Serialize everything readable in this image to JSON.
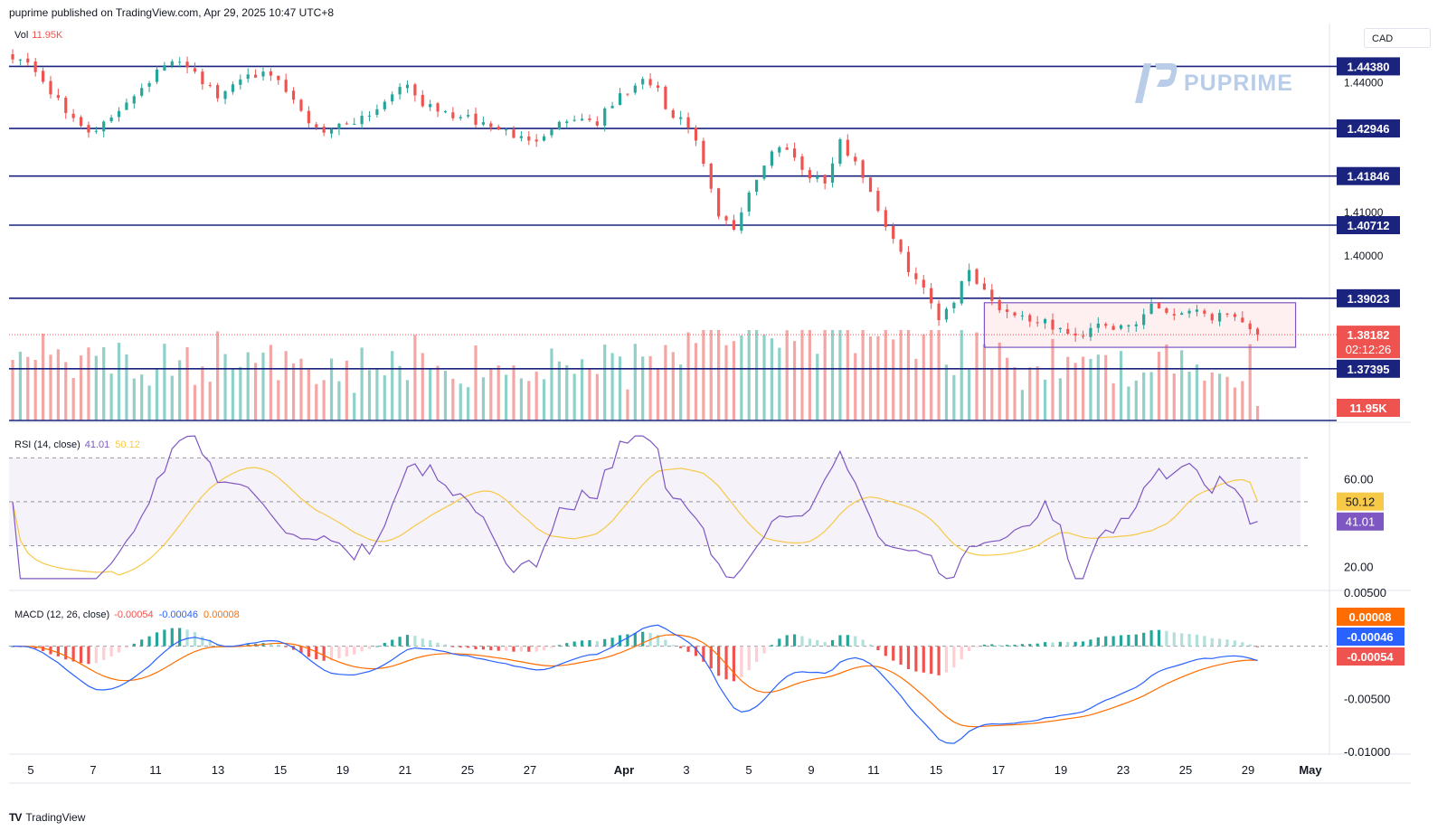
{
  "header": {
    "published_text": "puprime published on TradingView.com, Apr 29, 2025 10:47 UTC+8"
  },
  "currency_label": "CAD",
  "brand": {
    "name": "PUPRIME",
    "color": "#b9cde8"
  },
  "footer": {
    "logo": "TV",
    "text": "TradingView"
  },
  "colors": {
    "up": "#26a69a",
    "down": "#ef5350",
    "up_vol": "#8fd1c8",
    "down_vol": "#f4a6a4",
    "level_line": "#1a237e",
    "rsi": "#7e57c2",
    "rsi_ma": "#f7c948",
    "macd": "#2962ff",
    "signal": "#ff6d00"
  },
  "chart_data": [
    {
      "type": "candlestick",
      "symbol_quote": "CAD",
      "x_labels": [
        "5",
        "7",
        "11",
        "13",
        "15",
        "19",
        "21",
        "25",
        "27",
        "Apr",
        "3",
        "5",
        "9",
        "11",
        "15",
        "17",
        "19",
        "23",
        "25",
        "29",
        "May"
      ],
      "price_axis_ticks": [
        "1.44000",
        "1.40000",
        "1.41000"
      ],
      "ylim": [
        1.362,
        1.4537
      ],
      "horizontal_levels": [
        {
          "label": "1.44380",
          "value": 1.4438
        },
        {
          "label": "1.42946",
          "value": 1.42946
        },
        {
          "label": "1.41846",
          "value": 1.41846
        },
        {
          "label": "1.40712",
          "value": 1.40712
        },
        {
          "label": "1.39023",
          "value": 1.39023
        },
        {
          "label": "1.37395",
          "value": 1.37395
        }
      ],
      "current_price": {
        "label": "1.38182",
        "countdown": "02:12:26",
        "value": 1.38182
      },
      "range_box": {
        "from_bar": 128,
        "to_bar": 169,
        "top": 1.3892,
        "bottom": 1.3789
      },
      "anchors": [
        [
          0,
          1.4465
        ],
        [
          3,
          1.443
        ],
        [
          7,
          1.433
        ],
        [
          11,
          1.4282
        ],
        [
          15,
          1.436
        ],
        [
          20,
          1.444
        ],
        [
          23,
          1.4445
        ],
        [
          27,
          1.4365
        ],
        [
          31,
          1.443
        ],
        [
          35,
          1.44
        ],
        [
          39,
          1.431
        ],
        [
          41,
          1.429
        ],
        [
          45,
          1.4315
        ],
        [
          48,
          1.434
        ],
        [
          51,
          1.44
        ],
        [
          55,
          1.434
        ],
        [
          59,
          1.432
        ],
        [
          63,
          1.43
        ],
        [
          66,
          1.428
        ],
        [
          68,
          1.426
        ],
        [
          71,
          1.43
        ],
        [
          74,
          1.432
        ],
        [
          77,
          1.431
        ],
        [
          80,
          1.437
        ],
        [
          83,
          1.44
        ],
        [
          85,
          1.439
        ],
        [
          86,
          1.433
        ],
        [
          89,
          1.43
        ],
        [
          90,
          1.426
        ],
        [
          92,
          1.415
        ],
        [
          93,
          1.409
        ],
        [
          95,
          1.406
        ],
        [
          97,
          1.415
        ],
        [
          100,
          1.424
        ],
        [
          102,
          1.4255
        ],
        [
          104,
          1.42
        ],
        [
          107,
          1.417
        ],
        [
          109,
          1.426
        ],
        [
          111,
          1.422
        ],
        [
          113,
          1.415
        ],
        [
          115,
          1.407
        ],
        [
          117,
          1.4
        ],
        [
          120,
          1.392
        ],
        [
          122,
          1.386
        ],
        [
          124,
          1.39
        ],
        [
          126,
          1.397
        ],
        [
          128,
          1.392
        ],
        [
          130,
          1.388
        ],
        [
          133,
          1.386
        ],
        [
          135,
          1.385
        ],
        [
          138,
          1.383
        ],
        [
          140,
          1.381
        ],
        [
          143,
          1.385
        ],
        [
          146,
          1.383
        ],
        [
          148,
          1.384
        ],
        [
          150,
          1.389
        ],
        [
          153,
          1.3865
        ],
        [
          156,
          1.388
        ],
        [
          158,
          1.386
        ],
        [
          161,
          1.387
        ],
        [
          163,
          1.383
        ],
        [
          164,
          1.3818
        ]
      ],
      "n_bars": 165
    },
    {
      "type": "bar",
      "name": "Vol",
      "legend_value": "11.95K",
      "last_label": "11.95K"
    },
    {
      "type": "line",
      "name": "RSI (14, close)",
      "legend_values": [
        "41.01",
        "50.12"
      ],
      "ylim": [
        10,
        85
      ],
      "axis_ticks": [
        "60.00",
        "20.00"
      ],
      "band": [
        30,
        70
      ],
      "midline": 50,
      "last_values": {
        "rsi": 41.01,
        "rsi_ma": 50.12
      },
      "last_labels": {
        "rsi": "41.01",
        "rsi_ma": "50.12"
      }
    },
    {
      "type": "line",
      "name": "MACD (12, 26, close)",
      "legend_values": [
        "-0.00054",
        "-0.00046",
        "0.00008"
      ],
      "ylim": [
        -0.01,
        0.005
      ],
      "axis_ticks": [
        "0.00500",
        "-0.00500",
        "-0.01000"
      ],
      "last_labels": {
        "signal": "0.00008",
        "macd": "-0.00046",
        "hist": "-0.00054"
      }
    }
  ]
}
